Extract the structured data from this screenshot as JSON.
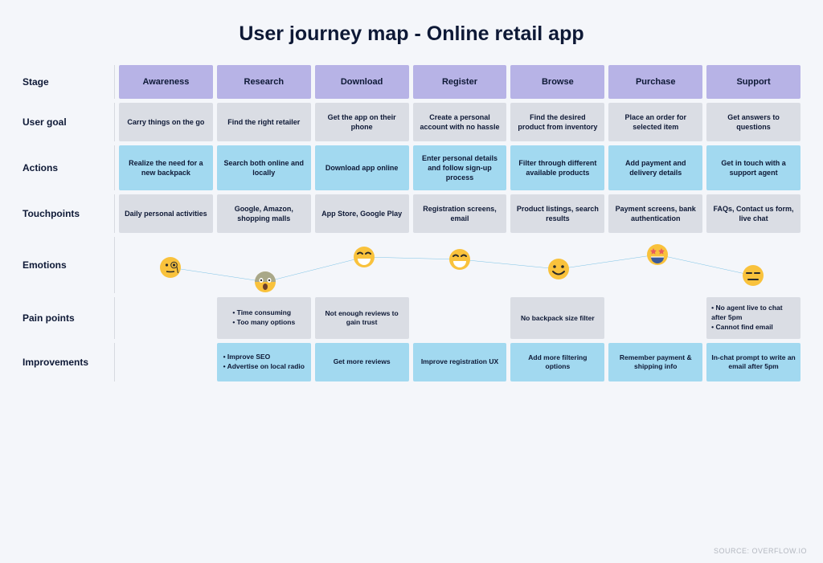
{
  "title": "User journey map - Online retail app",
  "source": "SOURCE: OVERFLOW.IO",
  "colors": {
    "background": "#f4f6fa",
    "stage_bg": "#b7b3e6",
    "grey_bg": "#dadde4",
    "blue_bg": "#a2d9f0",
    "text_dark": "#0e1936",
    "line_color": "#2a9fd6",
    "divider": "#d6d9e0"
  },
  "rows": {
    "stage": {
      "label": "Stage",
      "cells": [
        "Awareness",
        "Research",
        "Download",
        "Register",
        "Browse",
        "Purchase",
        "Support"
      ]
    },
    "user_goal": {
      "label": "User goal",
      "cells": [
        "Carry things on the go",
        "Find the right retailer",
        "Get the app on their phone",
        "Create a personal account with no hassle",
        "Find the desired product from inventory",
        "Place an order for selected item",
        "Get answers to questions"
      ]
    },
    "actions": {
      "label": "Actions",
      "cells": [
        "Realize the need for a new backpack",
        "Search both online and locally",
        "Download app online",
        "Enter personal details and follow sign-up process",
        "Filter through different available products",
        "Add payment and delivery details",
        "Get in touch with a support agent"
      ]
    },
    "touchpoints": {
      "label": "Touchpoints",
      "cells": [
        "Daily personal activities",
        "Google, Amazon, shopping malls",
        "App Store, Google Play",
        "Registration screens, email",
        "Product listings, search results",
        "Payment screens, bank authentication",
        "FAQs, Contact us form, live chat"
      ]
    },
    "emotions": {
      "label": "Emotions",
      "points": [
        {
          "x": 7.5,
          "y": 38,
          "emoji": "monocle"
        },
        {
          "x": 21.5,
          "y": 56,
          "emoji": "fearful"
        },
        {
          "x": 36,
          "y": 25,
          "emoji": "grin"
        },
        {
          "x": 50,
          "y": 28,
          "emoji": "grin"
        },
        {
          "x": 64.5,
          "y": 40,
          "emoji": "smile_hearts"
        },
        {
          "x": 79,
          "y": 22,
          "emoji": "star_eyes"
        },
        {
          "x": 93,
          "y": 48,
          "emoji": "expressionless"
        }
      ]
    },
    "pain_points": {
      "label": "Pain points",
      "cells": [
        null,
        "• Time consuming\n• Too many options",
        "Not enough reviews to gain trust",
        null,
        "No backpack size filter",
        null,
        "• No agent live to chat after 5pm\n• Cannot find email"
      ]
    },
    "improvements": {
      "label": "Improvements",
      "cells": [
        null,
        "• Improve SEO\n• Advertise on local radio",
        "Get more reviews",
        "Improve registration UX",
        "Add more filtering options",
        "Remember payment & shipping info",
        "In-chat prompt to write an email after 5pm"
      ]
    }
  }
}
